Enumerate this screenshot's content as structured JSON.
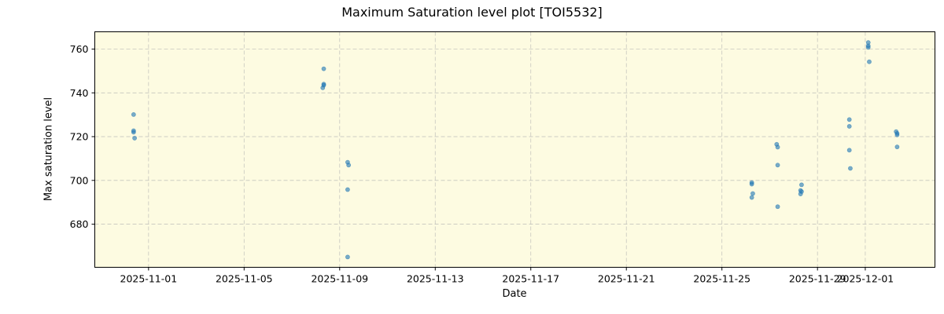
{
  "chart_data": {
    "type": "scatter",
    "title": "Maximum Saturation level plot [TOI5532]",
    "xlabel": "Date",
    "ylabel": "Max saturation level",
    "x_ticks": [
      "2025-11-01",
      "2025-11-05",
      "2025-11-09",
      "2025-11-13",
      "2025-11-17",
      "2025-11-21",
      "2025-11-25",
      "2025-11-29",
      "2025-12-01"
    ],
    "y_ticks": [
      680,
      700,
      720,
      740,
      760
    ],
    "xlim": [
      "2025-10-29T18:00",
      "2025-12-03T22:00"
    ],
    "ylim": [
      660.3,
      767.9
    ],
    "grid": true,
    "background": "#fdfbe1",
    "point_color": "#1f77b4",
    "series": [
      {
        "name": "max saturation",
        "points": [
          {
            "x": "2025-10-31T09:00",
            "y": 730.1
          },
          {
            "x": "2025-10-31T09:00",
            "y": 722.7
          },
          {
            "x": "2025-10-31T09:00",
            "y": 722.0
          },
          {
            "x": "2025-10-31T10:00",
            "y": 719.3
          },
          {
            "x": "2025-11-08T08:00",
            "y": 751.0
          },
          {
            "x": "2025-11-08T08:00",
            "y": 744.0
          },
          {
            "x": "2025-11-08T08:00",
            "y": 743.5
          },
          {
            "x": "2025-11-08T07:00",
            "y": 742.3
          },
          {
            "x": "2025-11-09T08:00",
            "y": 708.3
          },
          {
            "x": "2025-11-09T09:00",
            "y": 707.0
          },
          {
            "x": "2025-11-09T08:00",
            "y": 695.8
          },
          {
            "x": "2025-11-09T08:00",
            "y": 665.0
          },
          {
            "x": "2025-11-26T06:00",
            "y": 699.0
          },
          {
            "x": "2025-11-26T06:00",
            "y": 698.3
          },
          {
            "x": "2025-11-26T07:00",
            "y": 694.0
          },
          {
            "x": "2025-11-26T06:00",
            "y": 692.2
          },
          {
            "x": "2025-11-27T07:00",
            "y": 716.5
          },
          {
            "x": "2025-11-27T08:00",
            "y": 715.2
          },
          {
            "x": "2025-11-27T08:00",
            "y": 707.0
          },
          {
            "x": "2025-11-27T08:00",
            "y": 688.0
          },
          {
            "x": "2025-11-28T08:00",
            "y": 698.0
          },
          {
            "x": "2025-11-28T07:00",
            "y": 695.4
          },
          {
            "x": "2025-11-28T08:00",
            "y": 694.9
          },
          {
            "x": "2025-11-28T07:00",
            "y": 693.8
          },
          {
            "x": "2025-11-30T08:00",
            "y": 727.8
          },
          {
            "x": "2025-11-30T08:00",
            "y": 724.7
          },
          {
            "x": "2025-11-30T08:00",
            "y": 713.8
          },
          {
            "x": "2025-11-30T09:00",
            "y": 705.5
          },
          {
            "x": "2025-12-01T03:00",
            "y": 763.0
          },
          {
            "x": "2025-12-01T03:00",
            "y": 761.5
          },
          {
            "x": "2025-12-01T03:00",
            "y": 760.8
          },
          {
            "x": "2025-12-01T04:00",
            "y": 754.2
          },
          {
            "x": "2025-12-02T07:00",
            "y": 722.3
          },
          {
            "x": "2025-12-02T08:00",
            "y": 721.5
          },
          {
            "x": "2025-12-02T08:00",
            "y": 720.8
          },
          {
            "x": "2025-12-02T08:00",
            "y": 715.3
          }
        ]
      }
    ]
  }
}
